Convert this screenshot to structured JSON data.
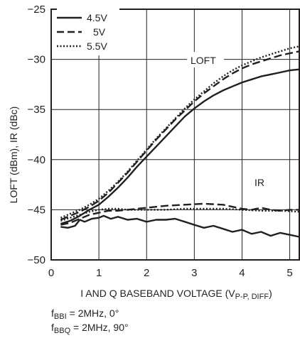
{
  "chart_data": {
    "type": "line",
    "ylabel": "LOFT (dBm), IR (dBc)",
    "xlabel_main": "I AND Q BASEBAND VOLTAGE (V",
    "xlabel_sub": "P-P, DIFF",
    "xlabel_end": ")",
    "xlim": [
      0,
      5.2
    ],
    "ylim": [
      -50,
      -25
    ],
    "x_ticks": [
      0,
      1,
      2,
      3,
      4,
      5
    ],
    "x_tick_labels": [
      "0",
      "1",
      "2",
      "3",
      "4",
      "5"
    ],
    "y_ticks": [
      -50,
      -45,
      -40,
      -35,
      -30,
      -25
    ],
    "y_tick_labels": [
      "−50",
      "−45",
      "−40",
      "−35",
      "−30",
      "−25"
    ],
    "grid": true,
    "legend_position": "top-left",
    "annotations": {
      "loft": "LOFT",
      "ir": "IR"
    },
    "footnotes": {
      "line1_prefix": "f",
      "line1_sub": "BBI",
      "line1_rest": " = 2MHz, 0°",
      "line2_prefix": "f",
      "line2_sub": "BBQ",
      "line2_rest": " = 2MHz, 90°"
    },
    "series": [
      {
        "name": "4.5V",
        "style": "solid",
        "group": "LOFT",
        "x": [
          0.2,
          0.4,
          0.6,
          0.8,
          1.0,
          1.2,
          1.4,
          1.6,
          1.8,
          2.0,
          2.2,
          2.4,
          2.6,
          2.8,
          3.0,
          3.2,
          3.4,
          3.6,
          3.8,
          4.0,
          4.2,
          4.4,
          4.6,
          4.8,
          5.0,
          5.2
        ],
        "y": [
          -46.4,
          -46.1,
          -45.6,
          -45.0,
          -44.5,
          -43.7,
          -42.8,
          -41.8,
          -40.7,
          -39.7,
          -38.7,
          -37.7,
          -36.7,
          -35.7,
          -34.9,
          -34.2,
          -33.6,
          -33.1,
          -32.7,
          -32.3,
          -32.0,
          -31.7,
          -31.5,
          -31.3,
          -31.1,
          -31.0
        ]
      },
      {
        "name": "5V",
        "style": "dashed",
        "group": "LOFT",
        "x": [
          0.2,
          0.4,
          0.6,
          0.8,
          1.0,
          1.2,
          1.4,
          1.6,
          1.8,
          2.0,
          2.2,
          2.4,
          2.6,
          2.8,
          3.0,
          3.2,
          3.4,
          3.6,
          3.8,
          4.0,
          4.2,
          4.4,
          4.6,
          4.8,
          5.0,
          5.2
        ],
        "y": [
          -46.0,
          -45.6,
          -45.2,
          -44.7,
          -44.1,
          -43.3,
          -42.3,
          -41.3,
          -40.2,
          -39.1,
          -38.0,
          -37.0,
          -36.0,
          -35.1,
          -34.2,
          -33.4,
          -32.7,
          -32.0,
          -31.4,
          -30.9,
          -30.5,
          -30.2,
          -29.9,
          -29.6,
          -29.4,
          -29.2
        ]
      },
      {
        "name": "5.5V",
        "style": "dotted",
        "group": "LOFT",
        "x": [
          0.2,
          0.4,
          0.6,
          0.8,
          1.0,
          1.2,
          1.4,
          1.6,
          1.8,
          2.0,
          2.2,
          2.4,
          2.6,
          2.8,
          3.0,
          3.2,
          3.4,
          3.6,
          3.8,
          4.0,
          4.2,
          4.4,
          4.6,
          4.8,
          5.0,
          5.2
        ],
        "y": [
          -45.8,
          -45.4,
          -45.0,
          -44.5,
          -43.9,
          -43.1,
          -42.2,
          -41.2,
          -40.1,
          -39.0,
          -37.9,
          -36.9,
          -35.9,
          -34.9,
          -34.0,
          -33.2,
          -32.4,
          -31.7,
          -31.1,
          -30.6,
          -30.2,
          -29.8,
          -29.5,
          -29.2,
          -28.9,
          -28.7
        ]
      },
      {
        "name": "4.5V",
        "style": "solid",
        "group": "IR",
        "x": [
          0.2,
          0.35,
          0.5,
          0.6,
          0.7,
          0.85,
          1.0,
          1.1,
          1.25,
          1.4,
          1.6,
          1.8,
          2.0,
          2.2,
          2.4,
          2.6,
          2.8,
          3.0,
          3.2,
          3.4,
          3.6,
          3.8,
          4.0,
          4.2,
          4.4,
          4.6,
          4.8,
          5.0,
          5.2
        ],
        "y": [
          -46.7,
          -46.8,
          -46.6,
          -46.0,
          -46.2,
          -45.9,
          -45.8,
          -45.6,
          -45.9,
          -45.7,
          -46.0,
          -45.9,
          -46.2,
          -46.0,
          -46.0,
          -45.9,
          -46.2,
          -46.5,
          -46.8,
          -46.6,
          -46.9,
          -47.2,
          -47.0,
          -47.4,
          -47.2,
          -47.6,
          -47.3,
          -47.5,
          -47.7
        ]
      },
      {
        "name": "5V",
        "style": "dashed",
        "group": "IR",
        "x": [
          0.2,
          0.4,
          0.6,
          0.8,
          1.0,
          1.2,
          1.4,
          1.6,
          1.8,
          2.0,
          2.4,
          2.8,
          3.2,
          3.6,
          3.8,
          4.0,
          4.2,
          4.4,
          4.6,
          4.8,
          5.0,
          5.2
        ],
        "y": [
          -46.5,
          -46.3,
          -45.9,
          -45.5,
          -45.3,
          -45.1,
          -45.1,
          -45.0,
          -44.9,
          -44.8,
          -44.6,
          -44.5,
          -44.4,
          -44.5,
          -44.7,
          -44.9,
          -45.0,
          -44.8,
          -45.0,
          -45.1,
          -45.0,
          -45.0
        ]
      },
      {
        "name": "5.5V",
        "style": "dotted",
        "group": "IR",
        "x": [
          0.2,
          0.4,
          0.6,
          0.8,
          1.0,
          1.2,
          1.4,
          1.6,
          1.8,
          2.0,
          2.4,
          2.8,
          3.2,
          3.6,
          4.0,
          4.4,
          4.8,
          5.2
        ],
        "y": [
          -46.1,
          -45.8,
          -45.5,
          -45.2,
          -45.0,
          -44.9,
          -44.9,
          -45.0,
          -45.0,
          -45.0,
          -45.0,
          -44.9,
          -44.9,
          -44.9,
          -45.0,
          -45.1,
          -45.1,
          -45.2
        ]
      }
    ]
  }
}
